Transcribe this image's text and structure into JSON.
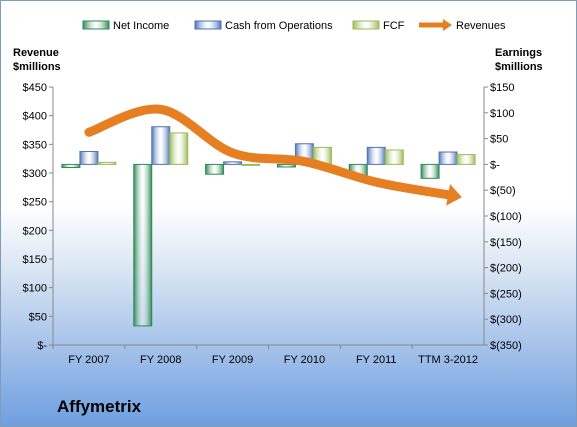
{
  "chart_data": {
    "type": "bar",
    "categories": [
      "FY 2007",
      "FY 2008",
      "FY 2009",
      "FY 2010",
      "FY 2011",
      "TTM 3-2012"
    ],
    "series": [
      {
        "name": "Net Income",
        "axis": "right",
        "values": [
          -6,
          -313,
          -19,
          -5,
          -24,
          -27
        ],
        "color": "#2e8b57"
      },
      {
        "name": "Cash from Operations",
        "axis": "right",
        "values": [
          25,
          73,
          5,
          40,
          33,
          24
        ],
        "color": "#4f74b8"
      },
      {
        "name": "FCF",
        "axis": "right",
        "values": [
          4,
          61,
          0,
          33,
          28,
          19
        ],
        "color": "#9bbb59"
      },
      {
        "name": "Revenues",
        "axis": "left",
        "type": "line",
        "values": [
          371,
          411,
          335,
          320,
          284,
          262
        ],
        "color": "#e67e22"
      }
    ],
    "left_axis": {
      "title": [
        "Revenue",
        "$millions"
      ],
      "ylim": [
        0,
        450
      ],
      "ticks": [
        0,
        50,
        100,
        150,
        200,
        250,
        300,
        350,
        400,
        450
      ],
      "tick_labels": [
        "$-",
        "$50",
        "$100",
        "$150",
        "$200",
        "$250",
        "$300",
        "$350",
        "$400",
        "$450"
      ]
    },
    "right_axis": {
      "title": [
        "Earnings",
        "$millions"
      ],
      "ylim": [
        -350,
        150
      ],
      "ticks": [
        150,
        100,
        50,
        0,
        -50,
        -100,
        -150,
        -200,
        -250,
        -300,
        -350
      ],
      "tick_labels": [
        "$150",
        "$100",
        "$50",
        "$-",
        "$(50)",
        "$(100)",
        "$(150)",
        "$(200)",
        "$(250)",
        "$(300)",
        "$(350)"
      ]
    },
    "legend": {
      "position": "top"
    },
    "company": "Affymetrix"
  }
}
